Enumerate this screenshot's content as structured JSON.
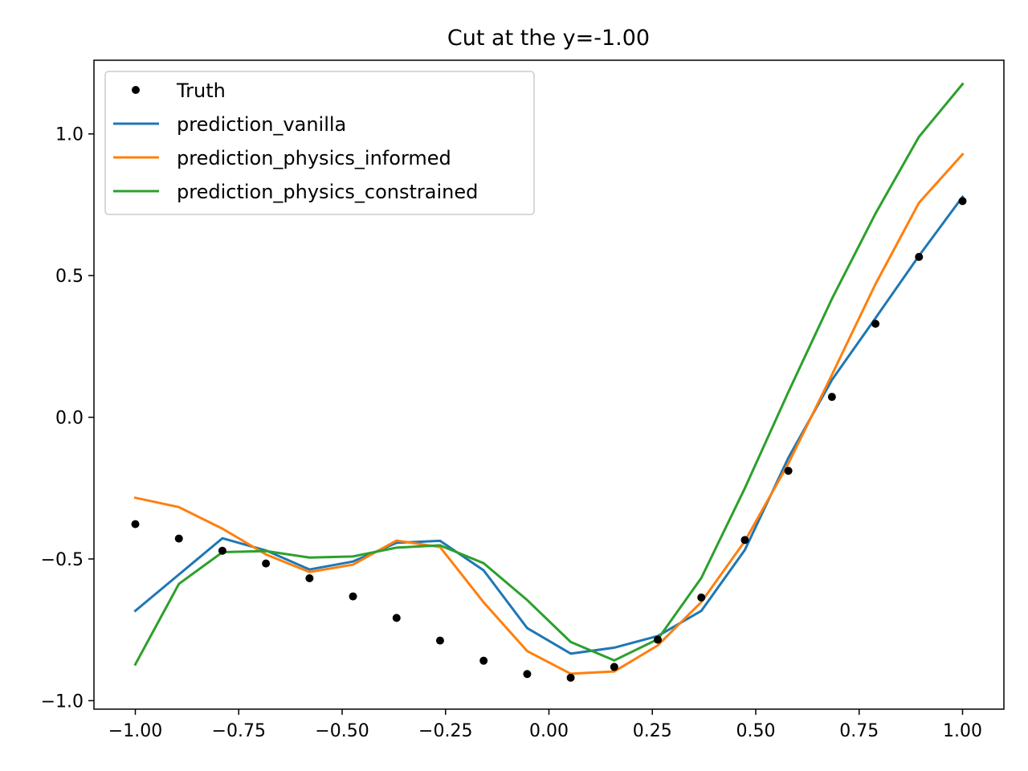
{
  "chart_data": {
    "type": "line",
    "title": "Cut at the y=-1.00",
    "xlabel": "",
    "ylabel": "",
    "xlim": [
      -1.1,
      1.1
    ],
    "ylim": [
      -1.03,
      1.26
    ],
    "grid": false,
    "legend_position": "top-left",
    "x_ticks": [
      {
        "value": -1.0,
        "label": "−1.00"
      },
      {
        "value": -0.75,
        "label": "−0.75"
      },
      {
        "value": -0.5,
        "label": "−0.50"
      },
      {
        "value": -0.25,
        "label": "−0.25"
      },
      {
        "value": 0.0,
        "label": "0.00"
      },
      {
        "value": 0.25,
        "label": "0.25"
      },
      {
        "value": 0.5,
        "label": "0.50"
      },
      {
        "value": 0.75,
        "label": "0.75"
      },
      {
        "value": 1.0,
        "label": "1.00"
      }
    ],
    "y_ticks": [
      {
        "value": -1.0,
        "label": "−1.0"
      },
      {
        "value": -0.5,
        "label": "−0.5"
      },
      {
        "value": 0.0,
        "label": "0.0"
      },
      {
        "value": 0.5,
        "label": "0.5"
      },
      {
        "value": 1.0,
        "label": "1.0"
      }
    ],
    "x": [
      -1.0,
      -0.8947,
      -0.7895,
      -0.6842,
      -0.5789,
      -0.4737,
      -0.3684,
      -0.2632,
      -0.1579,
      -0.0526,
      0.0526,
      0.1579,
      0.2632,
      0.3684,
      0.4737,
      0.5789,
      0.6842,
      0.7895,
      0.8947,
      1.0
    ],
    "series": [
      {
        "name": "Truth",
        "style": "points",
        "color": "#000000",
        "values": [
          -0.377,
          -0.428,
          -0.471,
          -0.516,
          -0.568,
          -0.632,
          -0.708,
          -0.788,
          -0.859,
          -0.906,
          -0.919,
          -0.881,
          -0.785,
          -0.636,
          -0.433,
          -0.189,
          0.072,
          0.33,
          0.566,
          0.763
        ]
      },
      {
        "name": "prediction_vanilla",
        "style": "line",
        "color": "#1f77b4",
        "values": [
          -0.683,
          -0.555,
          -0.427,
          -0.47,
          -0.537,
          -0.509,
          -0.443,
          -0.436,
          -0.54,
          -0.744,
          -0.834,
          -0.813,
          -0.772,
          -0.683,
          -0.468,
          -0.143,
          0.132,
          0.35,
          0.57,
          0.778
        ]
      },
      {
        "name": "prediction_physics_informed",
        "style": "line",
        "color": "#ff7f0e",
        "values": [
          -0.284,
          -0.317,
          -0.393,
          -0.484,
          -0.546,
          -0.52,
          -0.435,
          -0.458,
          -0.653,
          -0.825,
          -0.905,
          -0.897,
          -0.805,
          -0.652,
          -0.437,
          -0.163,
          0.15,
          0.47,
          0.757,
          0.928
        ]
      },
      {
        "name": "prediction_physics_constrained",
        "style": "line",
        "color": "#2ca02c",
        "values": [
          -0.872,
          -0.588,
          -0.476,
          -0.472,
          -0.495,
          -0.491,
          -0.46,
          -0.452,
          -0.515,
          -0.645,
          -0.793,
          -0.858,
          -0.783,
          -0.567,
          -0.25,
          0.089,
          0.418,
          0.719,
          0.99,
          1.176
        ]
      }
    ]
  }
}
